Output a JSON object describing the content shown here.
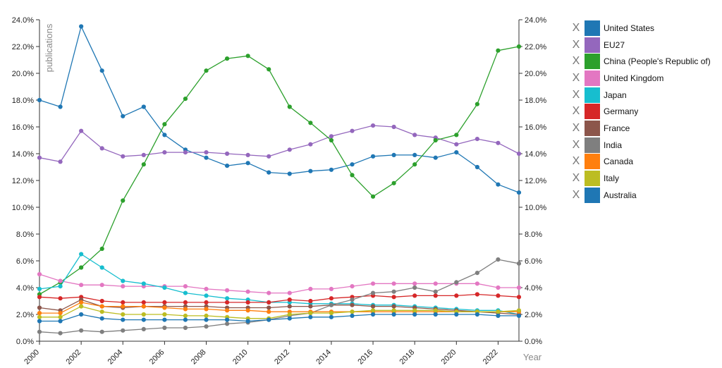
{
  "chart_data": {
    "type": "line",
    "title": "",
    "xlabel": "Year",
    "ylabel": "publications",
    "xlim": [
      2000,
      2023
    ],
    "ylim": [
      0,
      24
    ],
    "x_ticks": [
      "2000",
      "2002",
      "2004",
      "2006",
      "2008",
      "2010",
      "2012",
      "2014",
      "2016",
      "2018",
      "2020",
      "2022"
    ],
    "y_ticks": [
      "0.0%",
      "2.0%",
      "4.0%",
      "6.0%",
      "8.0%",
      "10.0%",
      "12.0%",
      "14.0%",
      "16.0%",
      "18.0%",
      "20.0%",
      "22.0%",
      "24.0%"
    ],
    "y_ticks_right": [
      "0.0%",
      "2.0%",
      "4.0%",
      "6.0%",
      "8.0%",
      "10.0%",
      "12.0%",
      "14.0%",
      "16.0%",
      "18.0%",
      "20.0%",
      "22.0%",
      "24.0%"
    ],
    "grid": false,
    "legend_position": "right",
    "x": [
      2000,
      2001,
      2002,
      2003,
      2004,
      2005,
      2006,
      2007,
      2008,
      2009,
      2010,
      2011,
      2012,
      2013,
      2014,
      2015,
      2016,
      2017,
      2018,
      2019,
      2020,
      2021,
      2022,
      2023
    ],
    "series": [
      {
        "name": "United States",
        "color": "#1f77b4",
        "values": [
          18.0,
          17.5,
          23.5,
          20.2,
          16.8,
          17.5,
          15.4,
          14.3,
          13.7,
          13.1,
          13.3,
          12.6,
          12.5,
          12.7,
          12.8,
          13.2,
          13.8,
          13.9,
          13.9,
          13.7,
          14.1,
          13.0,
          11.7,
          11.1
        ]
      },
      {
        "name": "EU27",
        "color": "#9467bd",
        "values": [
          13.7,
          13.4,
          15.7,
          14.4,
          13.8,
          13.9,
          14.1,
          14.1,
          14.1,
          14.0,
          13.9,
          13.8,
          14.3,
          14.7,
          15.3,
          15.7,
          16.1,
          16.0,
          15.4,
          15.2,
          14.7,
          15.1,
          14.8,
          14.0
        ]
      },
      {
        "name": "China (People's Republic of)",
        "color": "#2ca02c",
        "values": [
          3.5,
          4.4,
          5.5,
          6.9,
          10.5,
          13.2,
          16.2,
          18.1,
          20.2,
          21.1,
          21.3,
          20.3,
          17.5,
          16.3,
          15.0,
          12.4,
          10.8,
          11.8,
          13.2,
          15.0,
          15.4,
          17.7,
          21.7,
          22.0
        ]
      },
      {
        "name": "United Kingdom",
        "color": "#e377c2",
        "values": [
          5.0,
          4.5,
          4.2,
          4.2,
          4.1,
          4.1,
          4.1,
          4.1,
          3.9,
          3.8,
          3.7,
          3.6,
          3.6,
          3.9,
          3.9,
          4.1,
          4.3,
          4.3,
          4.3,
          4.3,
          4.3,
          4.3,
          4.0,
          4.0
        ]
      },
      {
        "name": "Japan",
        "color": "#17becf",
        "values": [
          3.9,
          4.1,
          6.5,
          5.5,
          4.5,
          4.3,
          4.0,
          3.6,
          3.4,
          3.2,
          3.1,
          2.9,
          2.9,
          2.8,
          2.8,
          2.8,
          2.7,
          2.7,
          2.6,
          2.5,
          2.4,
          2.3,
          2.3,
          2.0
        ]
      },
      {
        "name": "Germany",
        "color": "#d62728",
        "values": [
          3.3,
          3.2,
          3.3,
          3.0,
          2.9,
          2.9,
          2.9,
          2.9,
          2.9,
          2.9,
          2.9,
          2.9,
          3.1,
          3.0,
          3.2,
          3.3,
          3.4,
          3.3,
          3.4,
          3.4,
          3.4,
          3.5,
          3.4,
          3.3
        ]
      },
      {
        "name": "France",
        "color": "#8c564b",
        "values": [
          2.5,
          2.3,
          3.1,
          2.6,
          2.5,
          2.6,
          2.6,
          2.6,
          2.6,
          2.5,
          2.5,
          2.5,
          2.6,
          2.6,
          2.7,
          2.7,
          2.6,
          2.6,
          2.5,
          2.4,
          2.3,
          2.2,
          2.1,
          2.0
        ]
      },
      {
        "name": "India",
        "color": "#7f7f7f",
        "values": [
          0.7,
          0.6,
          0.8,
          0.7,
          0.8,
          0.9,
          1.0,
          1.0,
          1.1,
          1.3,
          1.4,
          1.6,
          1.9,
          2.1,
          2.7,
          3.1,
          3.6,
          3.7,
          4.0,
          3.7,
          4.4,
          5.1,
          6.1,
          5.8
        ]
      },
      {
        "name": "Canada",
        "color": "#ff7f0e",
        "values": [
          2.1,
          2.1,
          2.9,
          2.6,
          2.6,
          2.6,
          2.5,
          2.4,
          2.4,
          2.3,
          2.3,
          2.2,
          2.2,
          2.2,
          2.2,
          2.2,
          2.2,
          2.2,
          2.2,
          2.2,
          2.2,
          2.2,
          2.2,
          2.2
        ]
      },
      {
        "name": "Italy",
        "color": "#bcbd22",
        "values": [
          1.8,
          1.8,
          2.6,
          2.2,
          2.0,
          2.0,
          2.0,
          1.9,
          1.9,
          1.8,
          1.7,
          1.7,
          2.0,
          2.1,
          2.1,
          2.2,
          2.3,
          2.3,
          2.3,
          2.3,
          2.2,
          2.2,
          2.2,
          2.3
        ]
      },
      {
        "name": "Australia",
        "color": "#1f77b4",
        "values": [
          1.5,
          1.5,
          2.0,
          1.7,
          1.6,
          1.6,
          1.6,
          1.6,
          1.6,
          1.6,
          1.5,
          1.6,
          1.7,
          1.8,
          1.8,
          1.9,
          2.0,
          2.0,
          2.0,
          2.0,
          2.0,
          2.0,
          1.9,
          1.9
        ]
      }
    ]
  },
  "legend": {
    "remove_label": "X",
    "items": [
      {
        "label": "United States",
        "color": "#1f77b4"
      },
      {
        "label": "EU27",
        "color": "#9467bd"
      },
      {
        "label": "China (People's Republic of)",
        "color": "#2ca02c"
      },
      {
        "label": "United Kingdom",
        "color": "#e377c2"
      },
      {
        "label": "Japan",
        "color": "#17becf"
      },
      {
        "label": "Germany",
        "color": "#d62728"
      },
      {
        "label": "France",
        "color": "#8c564b"
      },
      {
        "label": "India",
        "color": "#7f7f7f"
      },
      {
        "label": "Canada",
        "color": "#ff7f0e"
      },
      {
        "label": "Italy",
        "color": "#bcbd22"
      },
      {
        "label": "Australia",
        "color": "#1f77b4"
      }
    ]
  }
}
